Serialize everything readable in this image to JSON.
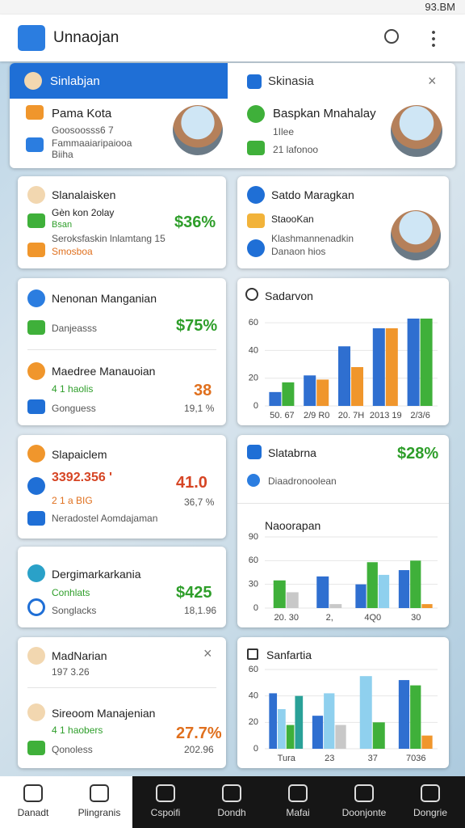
{
  "status_bar": {
    "time": "93.BM"
  },
  "app_bar": {
    "title": "Unnaojan"
  },
  "tabs": [
    {
      "label": "Sinlabjan",
      "title": "Pama Kota",
      "lines": [
        "Goosoosss6 7",
        "Fammaaiaripaiooa",
        "Biiha"
      ]
    },
    {
      "label": "Skinasia",
      "title": "Baspkan Mnahalay",
      "lines": [
        "1Ilee",
        "21 lafonoo"
      ]
    }
  ],
  "cards": {
    "a": {
      "title": "Slanalaisken",
      "line1": "Gèn kon 2olay",
      "badge": "Bsan",
      "line2": "Seroksfaskin lnlamtang 15",
      "line3": "Smosboa",
      "value": "$36%"
    },
    "b": {
      "title": "Satdo Maragkan",
      "line1": "StaooKan",
      "line2": "Klashmannenadkin",
      "line3": "Danaon hios"
    },
    "c": {
      "title": "Nenonan Manganian",
      "line1": "Danjeasss",
      "value": "$75%",
      "title2": "Maedree Manauoian",
      "line2": "4 1 haolis",
      "line3": "Gonguess",
      "value2": "38",
      "value3": "19,1 %"
    },
    "d": {
      "title": "Slapaiclem",
      "line1": "3392.356 '",
      "line2": "2 1 a BIG",
      "line3": "Neradostel Aomdajaman",
      "value": "41.0",
      "value2": "36,7 %"
    },
    "e": {
      "title": "Slatabrna",
      "value": "$28%",
      "line1": "Diaadronoolean"
    },
    "f": {
      "title": "Dergimarkarkania",
      "line1": "Conhlats",
      "line2": "Songlacks",
      "value": "$425",
      "value2": "18,1.96"
    },
    "g": {
      "title": "MadNarian",
      "line1": "197 3.26",
      "title2": "Sireoom Manajenian",
      "line2": "4 1 haobers",
      "line3": "Qonoless",
      "value": "27.7%",
      "value2": "202.96"
    }
  },
  "chart_data": [
    {
      "type": "bar",
      "title": "Sadarvon",
      "categories": [
        "50. 67",
        "2/9 R0",
        "20. 7H",
        "2013 19",
        "2/3/6"
      ],
      "series": [
        {
          "color": "#2f6fd0",
          "values": [
            10,
            22,
            43,
            56,
            63
          ]
        },
        {
          "color": "#3fb03a",
          "values": [
            17,
            null,
            null,
            null,
            63
          ]
        },
        {
          "color": "#f0962c",
          "values": [
            null,
            19,
            28,
            56,
            null
          ]
        }
      ],
      "ylim": [
        0,
        70
      ],
      "yticks": [
        0,
        20,
        40,
        60
      ],
      "grid": true
    },
    {
      "type": "bar",
      "title": "Naoorapan",
      "categories": [
        "20. 30",
        "2,",
        "4Q0",
        "30"
      ],
      "series": [
        {
          "color": "#2f6fd0",
          "values": [
            null,
            40,
            30,
            48
          ]
        },
        {
          "color": "#3fb03a",
          "values": [
            35,
            null,
            58,
            60
          ]
        },
        {
          "color": "#c8c8c8",
          "values": [
            20,
            5,
            null,
            null
          ]
        },
        {
          "color": "#8fd0ee",
          "values": [
            null,
            null,
            42,
            null
          ]
        },
        {
          "color": "#f0962c",
          "values": [
            null,
            null,
            null,
            5
          ]
        }
      ],
      "ylim": [
        0,
        90
      ],
      "yticks": [
        0,
        30,
        60,
        90
      ],
      "grid": true
    },
    {
      "type": "bar",
      "title": "Sanfartia",
      "categories": [
        "Tura",
        "23",
        "37",
        "7036"
      ],
      "series": [
        {
          "color": "#2f6fd0",
          "values": [
            42,
            25,
            null,
            52
          ]
        },
        {
          "color": "#8fd0ee",
          "values": [
            30,
            42,
            55,
            null
          ]
        },
        {
          "color": "#3fb03a",
          "values": [
            18,
            null,
            20,
            48
          ]
        },
        {
          "color": "#c8c8c8",
          "values": [
            null,
            18,
            null,
            null
          ]
        },
        {
          "color": "#f0962c",
          "values": [
            null,
            null,
            null,
            10
          ]
        },
        {
          "color": "#2aa198",
          "values": [
            40,
            null,
            null,
            null
          ]
        }
      ],
      "ylim": [
        0,
        60
      ],
      "yticks": [
        0,
        20,
        40,
        60
      ],
      "grid": true
    }
  ],
  "nav": [
    "Danadt",
    "Plingranis",
    "Cspoifi",
    "Dondh",
    "Mafai",
    "Doonjonte",
    "Dongrie"
  ]
}
